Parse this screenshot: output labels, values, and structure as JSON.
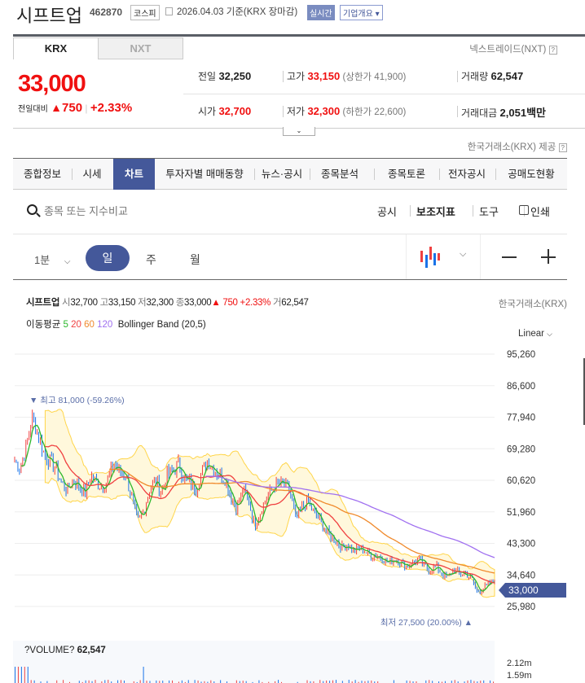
{
  "header": {
    "name": "시프트업",
    "code": "462870",
    "market": "코스피",
    "date_text": "2026.04.03 기준(KRX 장마감)",
    "realtime": "실시간",
    "company_info": "기업개요"
  },
  "tabs": {
    "krx": "KRX",
    "nxt": "NXT",
    "nxt_link": "넥스트레이드(NXT)",
    "help": "?"
  },
  "price": {
    "current": "33,000",
    "change_label": "전일대비",
    "change": "750",
    "change_pct": "+2.33%",
    "direction": "up"
  },
  "stats": [
    {
      "label": "전일",
      "value": "32,250",
      "color": "#222"
    },
    {
      "label": "고가",
      "value": "33,150",
      "sub": "(상한가 41,900)",
      "color": "#f01010"
    },
    {
      "label": "거래량",
      "value": "62,547",
      "color": "#222"
    },
    {
      "label": "시가",
      "value": "32,700",
      "color": "#f01010"
    },
    {
      "label": "저가",
      "value": "32,300",
      "sub": "(하한가 22,600)",
      "color": "#f01010"
    },
    {
      "label": "거래대금",
      "value": "2,051",
      "unit": "백만",
      "color": "#222"
    }
  ],
  "provider": "한국거래소(KRX) 제공",
  "nav": [
    "종합정보",
    "시세",
    "차트",
    "투자자별 매매동향",
    "뉴스·공시",
    "종목분석",
    "종목토론",
    "전자공시",
    "공매도현황"
  ],
  "search": {
    "placeholder": "종목 또는 지수비교"
  },
  "tools": [
    "공시",
    "보조지표",
    "도구",
    "인쇄"
  ],
  "periods": {
    "minute": "1분",
    "day": "일",
    "week": "주",
    "month": "월",
    "active": "일"
  },
  "chart_info": {
    "name": "시프트업",
    "o_l": "시",
    "o": "32,700",
    "h_l": "고",
    "h": "33,150",
    "l_l": "저",
    "l": "32,300",
    "c_l": "종",
    "c": "33,000",
    "chg": "▲ 750",
    "pct": "+2.33%",
    "v_l": "거",
    "v": "62,547",
    "source": "한국거래소(KRX)"
  },
  "ma": {
    "label": "이동평균",
    "periods": [
      "5",
      "20",
      "60",
      "120"
    ],
    "colors": [
      "#2cb82c",
      "#f04040",
      "#f08a2c",
      "#a070f0"
    ],
    "bb": "Bollinger Band (20,5)"
  },
  "scale": "Linear",
  "chart_data": {
    "type": "candlestick",
    "y_ticks": [
      "95,260",
      "86,600",
      "77,940",
      "69,280",
      "60,620",
      "51,960",
      "43,300",
      "34,640",
      "25,980"
    ],
    "ylim": [
      25980,
      95260
    ],
    "closes": [
      66000,
      64000,
      70000,
      78000,
      73000,
      68000,
      66000,
      64000,
      60000,
      58000,
      61000,
      59000,
      57000,
      62000,
      60000,
      59000,
      61000,
      65000,
      63000,
      62000,
      56000,
      49000,
      52000,
      58000,
      61000,
      57000,
      62000,
      63000,
      65000,
      61000,
      60000,
      58000,
      63000,
      66000,
      64000,
      62000,
      61000,
      56000,
      53000,
      58000,
      55000,
      48000,
      52000,
      56000,
      58000,
      60000,
      59000,
      58000,
      50000,
      53000,
      55000,
      52000,
      50000,
      47000,
      45000,
      44000,
      42000,
      43000,
      41000,
      42000,
      41000,
      40000,
      40000,
      39000,
      38000,
      39000,
      38000,
      37000,
      38000,
      39000,
      37000,
      36000,
      37000,
      35000,
      34000,
      36000,
      35000,
      35000,
      34000,
      30000,
      31000,
      32000,
      33000
    ],
    "high": {
      "label": "▼ 최고 81,000 (-59.26%)",
      "value": 81000
    },
    "low": {
      "label": "최저 27,500 (20.00%) ▲",
      "value": 27500
    },
    "last": "33,000"
  },
  "volume": {
    "label": "?VOLUME?",
    "value": "62,547",
    "ticks": [
      "2.12m",
      "1.59m"
    ]
  },
  "colors": {
    "accent": "#44589a",
    "up": "#f04040",
    "down": "#1a73e8",
    "band": "#fff8dc",
    "band_edge": "#ffd54a"
  }
}
